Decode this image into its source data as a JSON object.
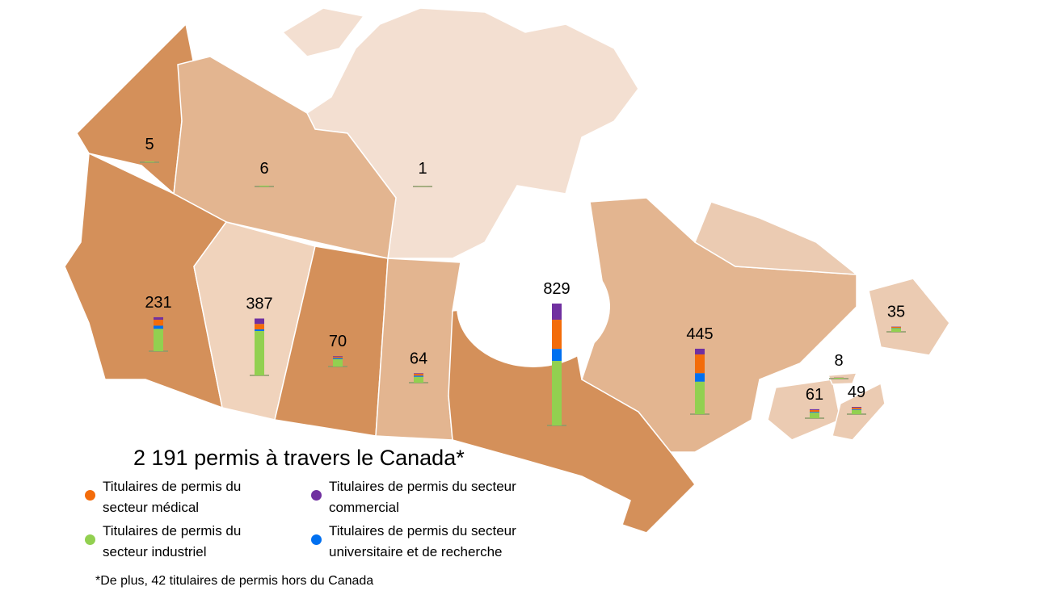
{
  "chart_data": {
    "type": "bar",
    "title": "2 191 permis à travers le Canada*",
    "footnote": "*De plus, 42 titulaires de permis hors du Canada",
    "totals": [
      5,
      6,
      1,
      231,
      387,
      70,
      64,
      829,
      445,
      61,
      8,
      49,
      35
    ],
    "series": [
      {
        "name": "Titulaires de permis du secteur industriel",
        "color": "#92d050",
        "values": [
          5,
          6,
          1,
          152,
          302,
          51,
          40,
          439,
          221,
          38,
          6,
          29,
          25
        ]
      },
      {
        "name": "Titulaires de permis du secteur universitaire et de recherche",
        "color": "#0070f0",
        "values": [
          0,
          0,
          0,
          22,
          11,
          8,
          8,
          82,
          58,
          5,
          0,
          5,
          2
        ]
      },
      {
        "name": "Titulaires de permis du secteur médical",
        "color": "#f36c0a",
        "values": [
          0,
          0,
          0,
          40,
          37,
          7,
          12,
          198,
          127,
          12,
          1,
          10,
          6
        ]
      },
      {
        "name": "Titulaires de permis du secteur commercial",
        "color": "#7030a0",
        "values": [
          0,
          0,
          0,
          17,
          37,
          4,
          4,
          110,
          39,
          6,
          1,
          5,
          2
        ]
      }
    ]
  }
}
